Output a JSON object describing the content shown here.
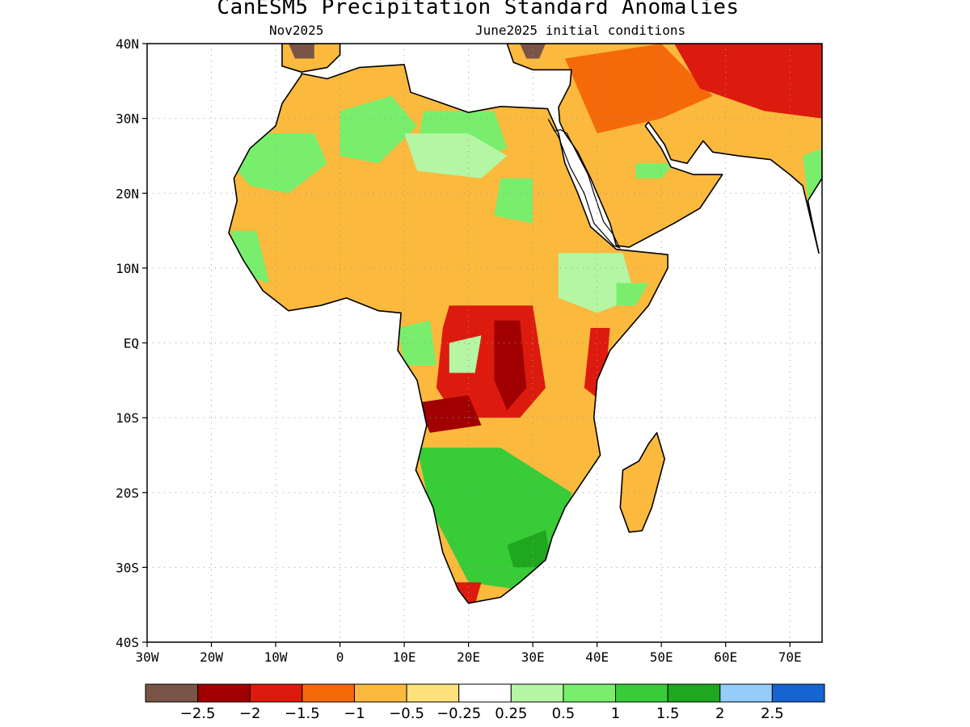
{
  "title": "CanESM5 Precipitation Standard Anomalies",
  "subtitle_left": "Nov2025",
  "subtitle_right": "June2025 initial conditions",
  "axes": {
    "lon_range": [
      -30,
      75
    ],
    "lat_range": [
      -40,
      40
    ],
    "x_ticks": [
      {
        "v": -30,
        "label": "30W"
      },
      {
        "v": -20,
        "label": "20W"
      },
      {
        "v": -10,
        "label": "10W"
      },
      {
        "v": 0,
        "label": "0"
      },
      {
        "v": 10,
        "label": "10E"
      },
      {
        "v": 20,
        "label": "20E"
      },
      {
        "v": 30,
        "label": "30E"
      },
      {
        "v": 40,
        "label": "40E"
      },
      {
        "v": 50,
        "label": "50E"
      },
      {
        "v": 60,
        "label": "60E"
      },
      {
        "v": 70,
        "label": "70E"
      }
    ],
    "y_ticks": [
      {
        "v": 40,
        "label": "40N"
      },
      {
        "v": 30,
        "label": "30N"
      },
      {
        "v": 20,
        "label": "20N"
      },
      {
        "v": 10,
        "label": "10N"
      },
      {
        "v": 0,
        "label": "EQ"
      },
      {
        "v": -10,
        "label": "10S"
      },
      {
        "v": -20,
        "label": "20S"
      },
      {
        "v": -30,
        "label": "30S"
      },
      {
        "v": -40,
        "label": "40S"
      }
    ],
    "grid": true
  },
  "colorbar": {
    "colors": [
      "#7a5446",
      "#a00000",
      "#dc1b0e",
      "#f46a0a",
      "#fbb93e",
      "#fde17a",
      "#ffffff",
      "#b4f6a4",
      "#78ee6c",
      "#38cc38",
      "#1fa81f",
      "#94ccfa",
      "#1464d2"
    ],
    "labels": [
      "−2.5",
      "−2",
      "−1.5",
      "−1",
      "−0.5",
      "−0.25",
      "0.25",
      "0.5",
      "1",
      "1.5",
      "2",
      "2.5"
    ]
  },
  "colors": {
    "land_base": "#fbb93e",
    "coastline": "#000000"
  },
  "regions": [
    {
      "name": "sahel-west",
      "level": "0.5",
      "points": [
        [
          -12,
          28
        ],
        [
          -4,
          28
        ],
        [
          -2,
          24
        ],
        [
          -8,
          20
        ],
        [
          -14,
          21
        ],
        [
          -17,
          24
        ]
      ]
    },
    {
      "name": "algeria-green",
      "level": "0.5",
      "points": [
        [
          0,
          31
        ],
        [
          8,
          33
        ],
        [
          12,
          29
        ],
        [
          6,
          24
        ],
        [
          0,
          25
        ]
      ]
    },
    {
      "name": "libya-egypt-green",
      "level": "0.5",
      "points": [
        [
          13,
          31
        ],
        [
          24,
          31
        ],
        [
          26,
          26
        ],
        [
          18,
          24
        ],
        [
          12,
          26
        ]
      ]
    },
    {
      "name": "sahara-white",
      "level": "0.25",
      "points": [
        [
          10,
          28
        ],
        [
          20,
          28
        ],
        [
          26,
          25
        ],
        [
          22,
          22
        ],
        [
          12,
          23
        ]
      ]
    },
    {
      "name": "sudan-green",
      "level": "0.5",
      "points": [
        [
          25,
          22
        ],
        [
          30,
          22
        ],
        [
          30,
          16
        ],
        [
          24,
          17
        ]
      ]
    },
    {
      "name": "west-africa-green",
      "level": "0.5",
      "points": [
        [
          -17,
          15
        ],
        [
          -13,
          15
        ],
        [
          -11,
          8
        ],
        [
          -15,
          9
        ]
      ]
    },
    {
      "name": "congo-red",
      "level": "-1.5",
      "points": [
        [
          17,
          5
        ],
        [
          30,
          5
        ],
        [
          32,
          -6
        ],
        [
          28,
          -10
        ],
        [
          18,
          -10
        ],
        [
          15,
          -6
        ],
        [
          16,
          2
        ]
      ]
    },
    {
      "name": "congo-dark",
      "level": "-2",
      "points": [
        [
          24,
          3
        ],
        [
          28,
          3
        ],
        [
          29,
          -6
        ],
        [
          26,
          -9
        ],
        [
          24,
          -5
        ]
      ]
    },
    {
      "name": "angola-dark",
      "level": "-2",
      "points": [
        [
          12,
          -8
        ],
        [
          20,
          -7
        ],
        [
          22,
          -11
        ],
        [
          14,
          -12
        ]
      ]
    },
    {
      "name": "gabon-green",
      "level": "0.5",
      "points": [
        [
          9,
          2
        ],
        [
          14,
          3
        ],
        [
          15,
          -3
        ],
        [
          10,
          -3
        ]
      ]
    },
    {
      "name": "congo-white",
      "level": "0.25",
      "points": [
        [
          17,
          0
        ],
        [
          22,
          1
        ],
        [
          21,
          -4
        ],
        [
          17,
          -4
        ]
      ]
    },
    {
      "name": "horn-white",
      "level": "0.25",
      "points": [
        [
          34,
          12
        ],
        [
          44,
          12
        ],
        [
          46,
          6
        ],
        [
          40,
          4
        ],
        [
          34,
          6
        ]
      ]
    },
    {
      "name": "somalia-green",
      "level": "0.5",
      "points": [
        [
          43,
          8
        ],
        [
          48,
          8
        ],
        [
          46,
          5
        ],
        [
          43,
          5
        ]
      ]
    },
    {
      "name": "east-africa-red",
      "level": "-1.5",
      "points": [
        [
          39,
          2
        ],
        [
          42,
          2
        ],
        [
          41,
          -8
        ],
        [
          38,
          -6
        ]
      ]
    },
    {
      "name": "southern-africa-green",
      "level": "1",
      "points": [
        [
          12,
          -14
        ],
        [
          25,
          -14
        ],
        [
          36,
          -20
        ],
        [
          35,
          -30
        ],
        [
          28,
          -33
        ],
        [
          20,
          -32
        ],
        [
          14,
          -22
        ]
      ]
    },
    {
      "name": "south-africa-dark-green",
      "level": "1.5",
      "points": [
        [
          26,
          -27
        ],
        [
          32,
          -25
        ],
        [
          33,
          -30
        ],
        [
          27,
          -30
        ]
      ]
    },
    {
      "name": "cape-red",
      "level": "-1.5",
      "points": [
        [
          18,
          -32
        ],
        [
          22,
          -32
        ],
        [
          21,
          -35
        ],
        [
          18,
          -34
        ]
      ]
    },
    {
      "name": "madagascar-orange",
      "level": "-0.5",
      "points": [
        [
          44,
          -14
        ],
        [
          49,
          -13
        ],
        [
          48,
          -24
        ],
        [
          45,
          -25
        ]
      ]
    },
    {
      "name": "middle-east-orange",
      "level": "-1",
      "points": [
        [
          35,
          38
        ],
        [
          50,
          40
        ],
        [
          58,
          33
        ],
        [
          50,
          30
        ],
        [
          40,
          28
        ]
      ]
    },
    {
      "name": "iran-red",
      "level": "-1.5",
      "points": [
        [
          52,
          40
        ],
        [
          75,
          40
        ],
        [
          75,
          30
        ],
        [
          66,
          31
        ],
        [
          56,
          34
        ]
      ]
    },
    {
      "name": "arabia-orange",
      "level": "-0.5",
      "points": [
        [
          36,
          28
        ],
        [
          50,
          28
        ],
        [
          56,
          20
        ],
        [
          48,
          14
        ],
        [
          40,
          15
        ]
      ]
    },
    {
      "name": "turkey-brown",
      "level": "-2.5",
      "points": [
        [
          28,
          40
        ],
        [
          32,
          40
        ],
        [
          31,
          38
        ],
        [
          29,
          38
        ]
      ]
    },
    {
      "name": "spain-brown",
      "level": "-2.5",
      "points": [
        [
          -8,
          40
        ],
        [
          -4,
          40
        ],
        [
          -4,
          38
        ],
        [
          -7,
          38
        ]
      ]
    },
    {
      "name": "india-green",
      "level": "0.5",
      "points": [
        [
          72,
          25
        ],
        [
          75,
          26
        ],
        [
          75,
          15
        ],
        [
          73,
          18
        ]
      ]
    },
    {
      "name": "arabia-green",
      "level": "0.5",
      "points": [
        [
          46,
          24
        ],
        [
          52,
          24
        ],
        [
          50,
          22
        ],
        [
          46,
          22
        ]
      ]
    }
  ]
}
